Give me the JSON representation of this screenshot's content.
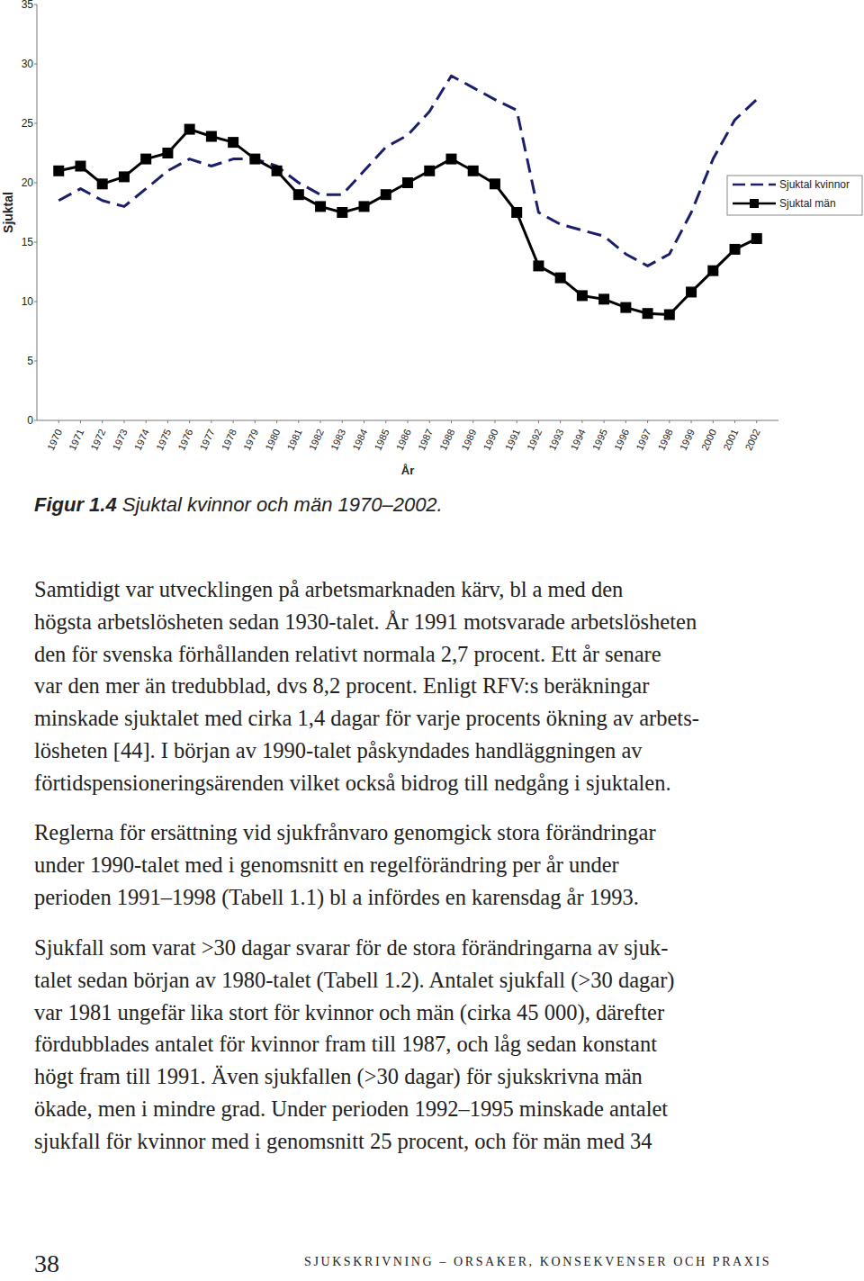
{
  "chart_data": {
    "type": "line",
    "x_label": "År",
    "y_label": "Sjuktal",
    "x": [
      1970,
      1971,
      1972,
      1973,
      1974,
      1975,
      1976,
      1977,
      1978,
      1979,
      1980,
      1981,
      1982,
      1983,
      1984,
      1985,
      1986,
      1987,
      1988,
      1989,
      1990,
      1991,
      1992,
      1993,
      1994,
      1995,
      1996,
      1997,
      1998,
      1999,
      2000,
      2001,
      2002
    ],
    "xlim": [
      1969,
      2003
    ],
    "xticks": [
      1970,
      1971,
      1972,
      1973,
      1974,
      1975,
      1976,
      1977,
      1978,
      1979,
      1980,
      1981,
      1982,
      1983,
      1984,
      1985,
      1986,
      1987,
      1988,
      1989,
      1990,
      1991,
      1992,
      1993,
      1994,
      1995,
      1996,
      1997,
      1998,
      1999,
      2000,
      2001,
      2002
    ],
    "ylim": [
      0,
      35
    ],
    "yticks": [
      0,
      5,
      10,
      15,
      20,
      25,
      30,
      35
    ],
    "grid": false,
    "legend": "right",
    "series": [
      {
        "name": "Sjuktal kvinnor",
        "color": "#1b1f6b",
        "line_style": "dashed",
        "marker": "none",
        "values": [
          18.5,
          19.5,
          18.5,
          18.0,
          19.5,
          21.0,
          22.0,
          21.4,
          22.0,
          22.0,
          21.4,
          20.0,
          19.0,
          19.0,
          21.0,
          23.0,
          24.0,
          26.0,
          29.0,
          28.0,
          27.0,
          26.1,
          17.5,
          16.5,
          16.0,
          15.5,
          14.0,
          13.0,
          14.0,
          17.5,
          22.0,
          25.3,
          27.0
        ]
      },
      {
        "name": "Sjuktal män",
        "color": "#000000",
        "line_style": "solid",
        "marker": "square",
        "values": [
          21.0,
          21.4,
          19.9,
          20.5,
          22.0,
          22.5,
          24.5,
          23.9,
          23.4,
          22.0,
          21.0,
          19.0,
          18.0,
          17.5,
          18.0,
          19.0,
          20.0,
          21.0,
          22.0,
          21.0,
          19.9,
          17.5,
          13.0,
          12.0,
          10.5,
          10.2,
          9.5,
          9.0,
          8.9,
          10.8,
          12.6,
          14.4,
          15.3
        ]
      }
    ]
  },
  "caption": {
    "label": "Figur 1.4",
    "text": "Sjuktal kvinnor och män 1970–2002."
  },
  "paragraphs": [
    {
      "lines": [
        "Samtidigt var utvecklingen på arbetsmarknaden kärv, bl a med den",
        "högsta arbetslösheten sedan 1930-talet. År 1991 motsvarade arbetslösheten",
        "den för svenska förhållanden relativt normala 2,7 procent. Ett år senare",
        "var den mer än tredubblad, dvs 8,2 procent. Enligt RFV:s beräkningar",
        "minskade sjuktalet med cirka 1,4 dagar för varje procents ökning av arbets-",
        "lösheten [44]. I början av 1990-talet påskyndades handläggningen av",
        "förtidspensioneringsärenden vilket också bidrog till nedgång i sjuktalen."
      ]
    },
    {
      "lines": [
        "Reglerna för ersättning vid sjukfrånvaro genomgick stora förändringar",
        "under 1990-talet med i genomsnitt en regelförändring per år under",
        "perioden 1991–1998 (Tabell 1.1) bl a infördes en karensdag år 1993."
      ]
    },
    {
      "lines": [
        "Sjukfall som varat >30 dagar svarar för de stora förändringarna av sjuk-",
        "talet sedan början av 1980-talet (Tabell 1.2). Antalet sjukfall (>30 dagar)",
        "var 1981 ungefär lika stort för kvinnor och män (cirka 45 000), därefter",
        "fördubblades antalet för kvinnor fram till 1987, och låg sedan konstant",
        "högt fram till 1991. Även sjukfallen (>30 dagar) för sjukskrivna män",
        "ökade, men i mindre grad. Under perioden 1992–1995 minskade antalet",
        "sjukfall för kvinnor med i genomsnitt 25 procent, och för män med 34"
      ]
    }
  ],
  "footer": {
    "page_number": "38",
    "running_title": "SJUKSKRIVNING – ORSAKER, KONSEKVENSER OCH PRAXIS"
  }
}
